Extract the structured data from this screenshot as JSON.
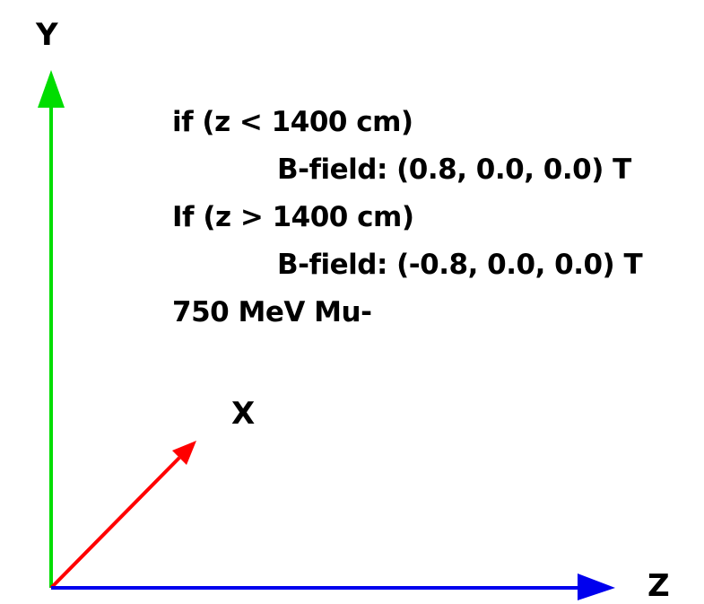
{
  "axes": {
    "y": {
      "label": "Y",
      "color": "#00dd00"
    },
    "x": {
      "label": "X",
      "color": "#ff0000"
    },
    "z": {
      "label": "Z",
      "color": "#0000ee"
    }
  },
  "annotation": {
    "line1": "if (z < 1400 cm)",
    "line2": "B-field: (0.8, 0.0, 0.0) T",
    "line3": "If (z > 1400 cm)",
    "line4": "B-field: (-0.8, 0.0, 0.0) T",
    "line5": "750 MeV Mu-"
  }
}
